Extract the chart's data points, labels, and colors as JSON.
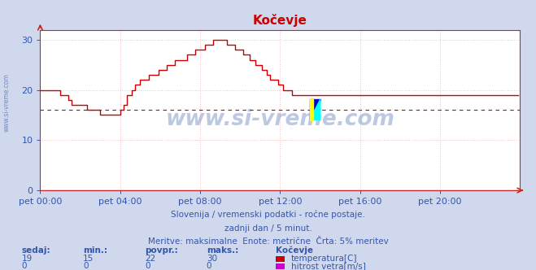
{
  "title": "Kočevje",
  "title_color": "#cc0000",
  "bg_color": "#d0d8ee",
  "plot_bg_color": "#ffffff",
  "grid_color": "#ffbbbb",
  "axis_color": "#cc2222",
  "text_color": "#3355aa",
  "xlabel_ticks": [
    "pet 00:00",
    "pet 04:00",
    "pet 08:00",
    "pet 12:00",
    "pet 16:00",
    "pet 20:00"
  ],
  "xtick_positions": [
    0,
    48,
    96,
    144,
    192,
    240
  ],
  "ylabel_ticks": [
    0,
    10,
    20,
    30
  ],
  "ylim": [
    0,
    32
  ],
  "xlim": [
    0,
    288
  ],
  "avg_line_y": 16,
  "avg_line_color": "#cc0000",
  "line_color": "#cc0000",
  "line2_color": "#cc00cc",
  "watermark": "www.si-vreme.com",
  "watermark_color": "#3355aa",
  "subtitle1": "Slovenija / vremenski podatki - ročne postaje.",
  "subtitle2": "zadnji dan / 5 minut.",
  "subtitle3": "Meritve: maksimalne  Enote: metrične  Črta: 5% meritev",
  "legend_title": "Kočevje",
  "legend_labels": [
    "temperatura[C]",
    "hitrost vetra[m/s]"
  ],
  "legend_colors": [
    "#cc0000",
    "#cc00cc"
  ],
  "stats_header": [
    "sedaj:",
    "min.:",
    "povpr.:",
    "maks.:"
  ],
  "stats_temp": [
    19,
    15,
    22,
    30
  ],
  "stats_wind": [
    0,
    0,
    0,
    0
  ],
  "temp_data": [
    20,
    20,
    20,
    20,
    20,
    20,
    20,
    20,
    20,
    20,
    20,
    20,
    19,
    19,
    19,
    19,
    19,
    18,
    18,
    17,
    17,
    17,
    17,
    17,
    17,
    17,
    17,
    17,
    16,
    16,
    16,
    16,
    16,
    16,
    16,
    16,
    15,
    15,
    15,
    15,
    15,
    15,
    15,
    15,
    15,
    15,
    15,
    15,
    16,
    16,
    17,
    17,
    19,
    19,
    19,
    20,
    20,
    21,
    21,
    21,
    22,
    22,
    22,
    22,
    22,
    23,
    23,
    23,
    23,
    23,
    23,
    24,
    24,
    24,
    24,
    24,
    25,
    25,
    25,
    25,
    25,
    26,
    26,
    26,
    26,
    26,
    26,
    26,
    27,
    27,
    27,
    27,
    27,
    28,
    28,
    28,
    28,
    28,
    28,
    29,
    29,
    29,
    29,
    29,
    30,
    30,
    30,
    30,
    30,
    30,
    30,
    30,
    29,
    29,
    29,
    29,
    29,
    28,
    28,
    28,
    28,
    28,
    27,
    27,
    27,
    27,
    26,
    26,
    26,
    25,
    25,
    25,
    25,
    24,
    24,
    24,
    23,
    23,
    22,
    22,
    22,
    22,
    22,
    21,
    21,
    21,
    20,
    20,
    20,
    20,
    20,
    19,
    19,
    19,
    19,
    19,
    19,
    19,
    19,
    19,
    19,
    19,
    19,
    19,
    19,
    19,
    19,
    19,
    19,
    19
  ],
  "tick_label_fontsize": 8,
  "axis_label_fontsize": 8
}
